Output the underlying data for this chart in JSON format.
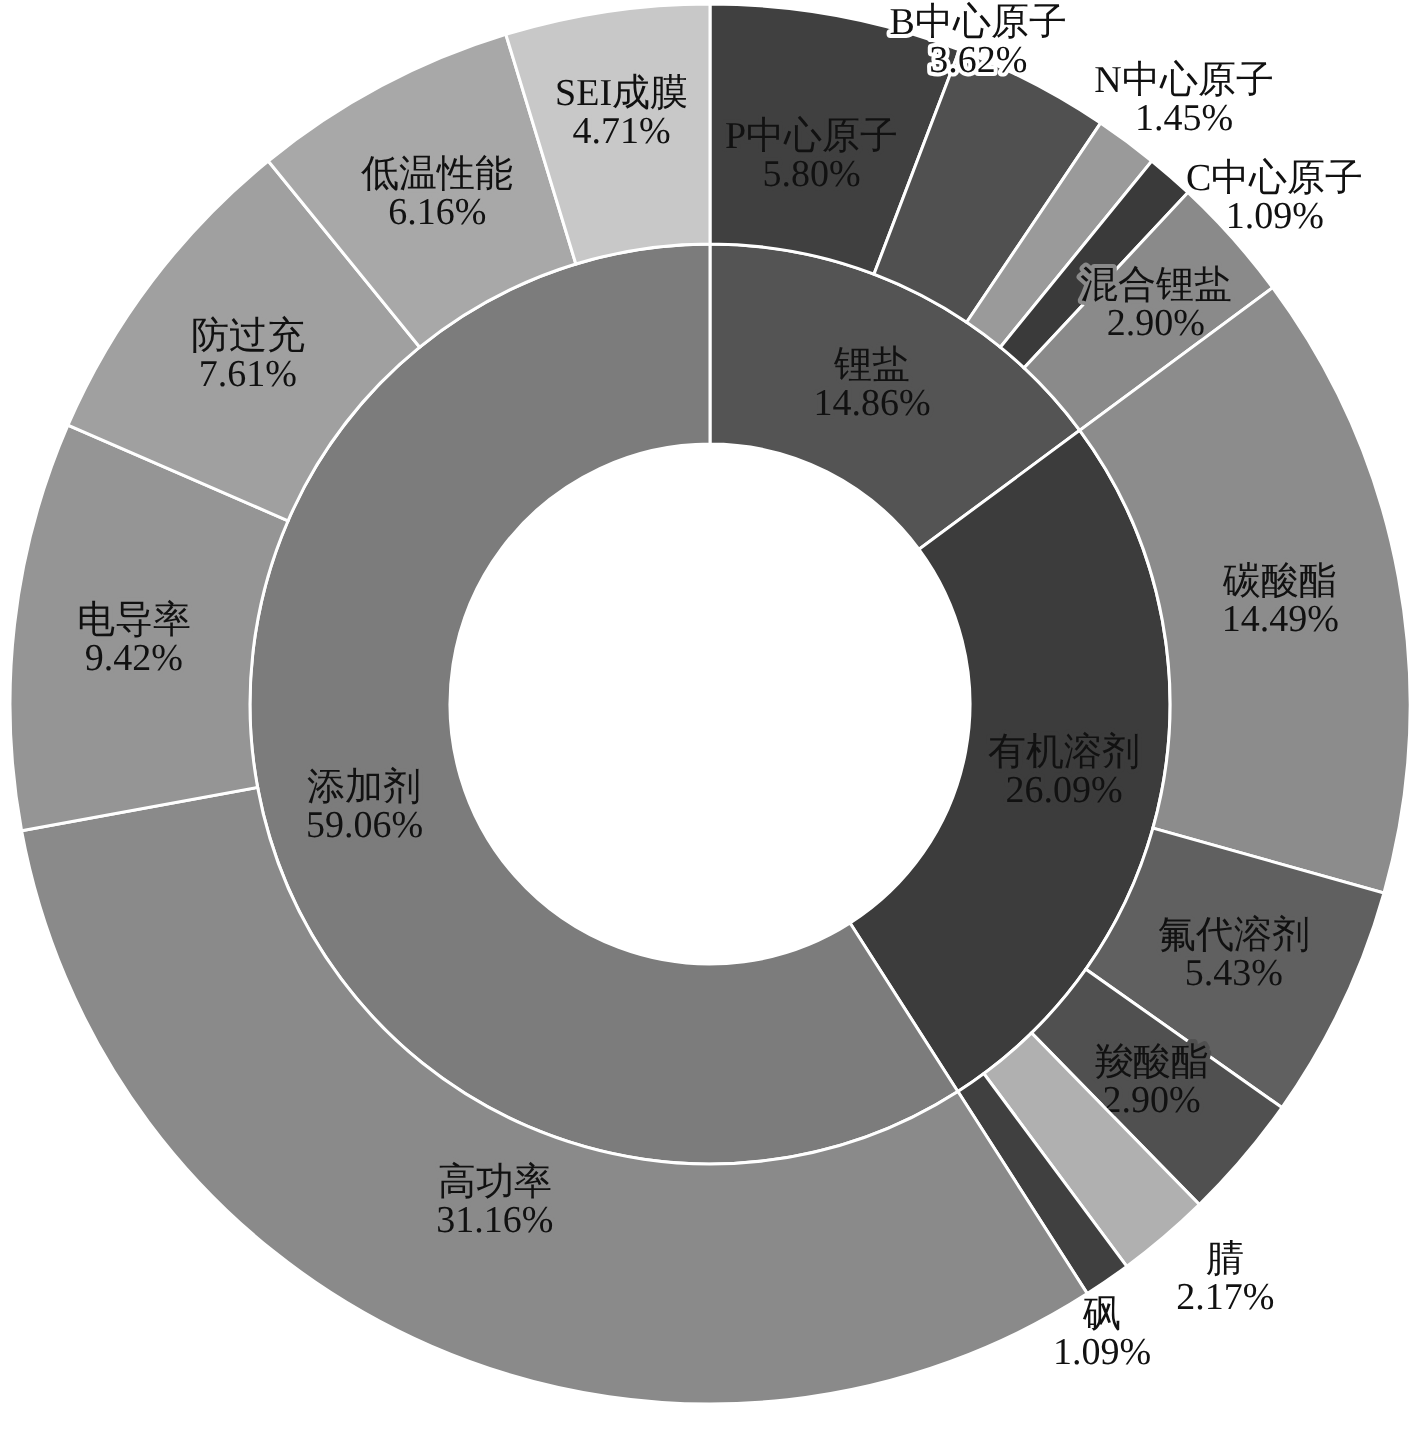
{
  "chart_data": [
    {
      "type": "donut",
      "categories": [
        "锂盐",
        "有机溶剂",
        "添加剂"
      ],
      "values": [
        14.86,
        26.09,
        59.06
      ],
      "value_labels": [
        "14.86%",
        "26.09%",
        "59.06%"
      ],
      "colors": [
        "#545454",
        "#3c3c3c",
        "#7c7c7c"
      ]
    },
    {
      "type": "donut",
      "categories": [
        "P中心原子",
        "B中心原子",
        "N中心原子",
        "C中心原子",
        "混合锂盐",
        "碳酸酯",
        "氟代溶剂",
        "羧酸酯",
        "腈",
        "砜",
        "高功率",
        "电导率",
        "防过充",
        "低温性能",
        "SEI成膜"
      ],
      "values": [
        5.8,
        3.62,
        1.45,
        1.09,
        2.9,
        14.49,
        5.43,
        2.9,
        2.17,
        1.09,
        31.16,
        9.42,
        7.61,
        6.16,
        4.71
      ],
      "value_labels": [
        "5.80%",
        "3.62%",
        "1.45%",
        "1.09%",
        "2.90%",
        "14.49%",
        "5.43%",
        "2.90%",
        "2.17%",
        "1.09%",
        "31.16%",
        "9.42%",
        "7.61%",
        "6.16%",
        "4.71%"
      ],
      "colors": [
        "#404040",
        "#505050",
        "#9a9a9a",
        "#3a3a3a",
        "#8a8a8a",
        "#8c8c8c",
        "#606060",
        "#505050",
        "#b0b0b0",
        "#404040",
        "#8a8a8a",
        "#959595",
        "#a0a0a0",
        "#a8a8a8",
        "#c8c8c8"
      ]
    }
  ]
}
